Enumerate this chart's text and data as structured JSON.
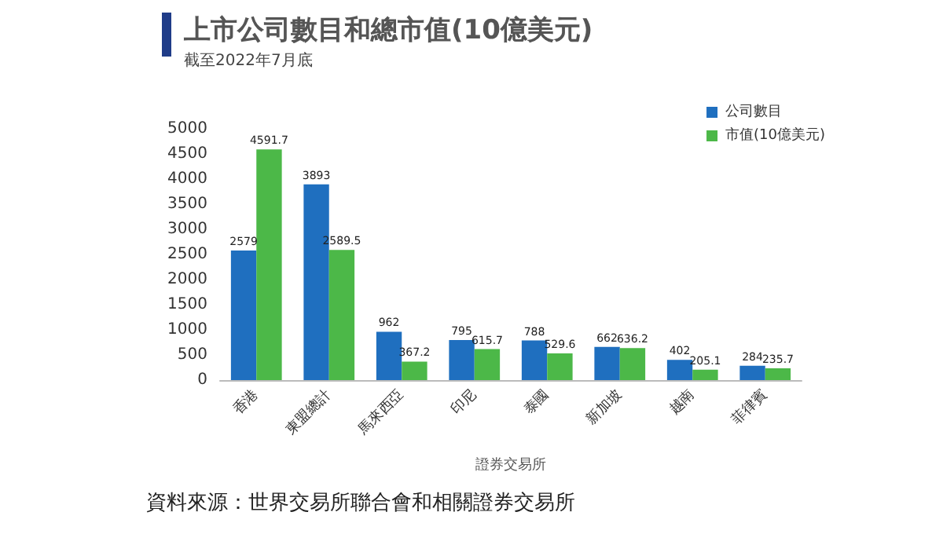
{
  "chart_data": {
    "type": "bar",
    "title": "上市公司數目和總市值(10億美元)",
    "subtitle": "截至2022年7月底",
    "xlabel": "證券交易所",
    "categories": [
      "香港",
      "東盟總計",
      "馬來西亞",
      "印尼",
      "泰國",
      "新加坡",
      "越南",
      "菲律賓"
    ],
    "series": [
      {
        "name": "公司數目",
        "color": "#1f6fbf",
        "values": [
          2579,
          3893,
          962,
          795,
          788,
          662,
          402,
          284
        ]
      },
      {
        "name": "市值(10億美元)",
        "color": "#4cb848",
        "values": [
          4591.7,
          2589.5,
          367.2,
          615.7,
          529.6,
          636.2,
          205.1,
          235.7
        ]
      }
    ],
    "ylim": [
      0,
      5000
    ],
    "yticks": [
      0,
      500,
      1000,
      1500,
      2000,
      2500,
      3000,
      3500,
      4000,
      4500,
      5000
    ],
    "data_labels": true,
    "grid": false,
    "legend": "top right",
    "annotations": [
      "資料來源：世界交易所聯合會和相關證券交易所"
    ]
  }
}
